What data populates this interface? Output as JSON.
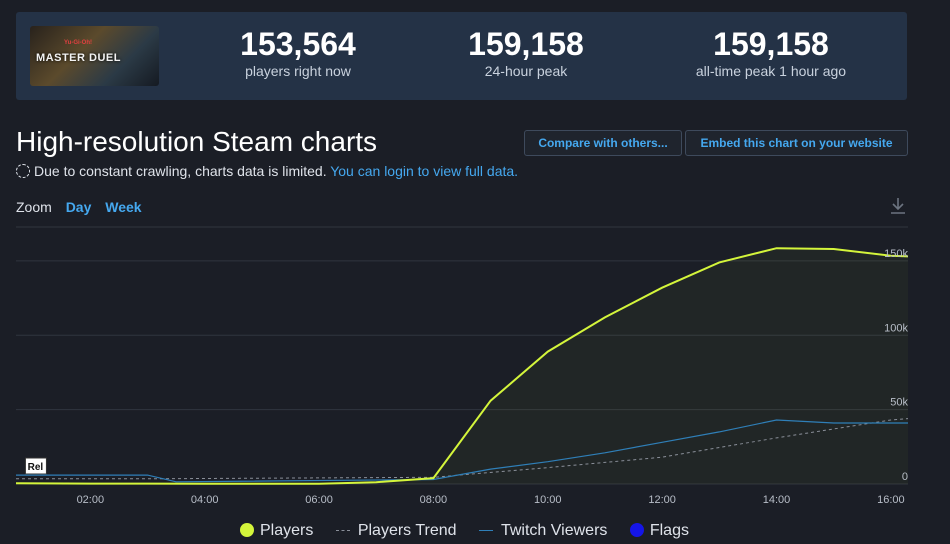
{
  "game": {
    "thumb_subtitle": "Yu-Gi-Oh!",
    "thumb_title": "MASTER DUEL"
  },
  "stats": [
    {
      "value": "153,564",
      "label": "players right now"
    },
    {
      "value": "159,158",
      "label": "24-hour peak"
    },
    {
      "value": "159,158",
      "label": "all-time peak 1 hour ago"
    }
  ],
  "header": {
    "title": "High-resolution Steam charts",
    "compare_button": "Compare with others...",
    "embed_button": "Embed this chart on your website"
  },
  "notice": {
    "text": "Due to constant crawling, charts data is limited.",
    "link": "You can login to view full data."
  },
  "zoom": {
    "label": "Zoom",
    "day": "Day",
    "week": "Week"
  },
  "icons": {
    "download": "download-icon",
    "loading": "loading-icon"
  },
  "colors": {
    "players": "#d4f53b",
    "trend": "#8a8f99",
    "twitch": "#2f7fb8",
    "flags": "#1515e8",
    "grid": "#30353f"
  },
  "chart_data": {
    "type": "line",
    "x_unit": "hours",
    "x_ticks": [
      "02:00",
      "04:00",
      "06:00",
      "08:00",
      "10:00",
      "12:00",
      "14:00",
      "16:00"
    ],
    "y_ticks": [
      "0",
      "50k",
      "100k",
      "150k"
    ],
    "ylim": [
      0,
      160000
    ],
    "xlim": [
      0.7,
      16.3
    ],
    "series": [
      {
        "name": "Players",
        "points": [
          [
            0.7,
            500
          ],
          [
            2,
            300
          ],
          [
            3,
            300
          ],
          [
            4,
            200
          ],
          [
            5,
            200
          ],
          [
            6,
            200
          ],
          [
            7,
            1200
          ],
          [
            8,
            4000
          ],
          [
            9,
            56000
          ],
          [
            10,
            89000
          ],
          [
            11,
            112000
          ],
          [
            12,
            132000
          ],
          [
            13,
            149000
          ],
          [
            14,
            158500
          ],
          [
            15,
            158000
          ],
          [
            16,
            153500
          ],
          [
            16.3,
            153000
          ]
        ]
      },
      {
        "name": "Players Trend",
        "points": [
          [
            0.7,
            3500
          ],
          [
            3,
            3500
          ],
          [
            8,
            4500
          ],
          [
            10,
            11000
          ],
          [
            12,
            18000
          ],
          [
            14,
            31000
          ],
          [
            16,
            43000
          ],
          [
            16.3,
            44000
          ]
        ]
      },
      {
        "name": "Twitch Viewers",
        "points": [
          [
            0.7,
            6000
          ],
          [
            3,
            6000
          ],
          [
            3.5,
            1500
          ],
          [
            8,
            3000
          ],
          [
            9,
            10000
          ],
          [
            10,
            15000
          ],
          [
            11,
            21000
          ],
          [
            12,
            28000
          ],
          [
            13,
            35000
          ],
          [
            14,
            43000
          ],
          [
            15,
            41000
          ],
          [
            16.3,
            41000
          ]
        ]
      },
      {
        "name": "Flags",
        "points": []
      }
    ],
    "annotations": [
      {
        "x": 0.9,
        "text": "Rel"
      }
    ]
  }
}
